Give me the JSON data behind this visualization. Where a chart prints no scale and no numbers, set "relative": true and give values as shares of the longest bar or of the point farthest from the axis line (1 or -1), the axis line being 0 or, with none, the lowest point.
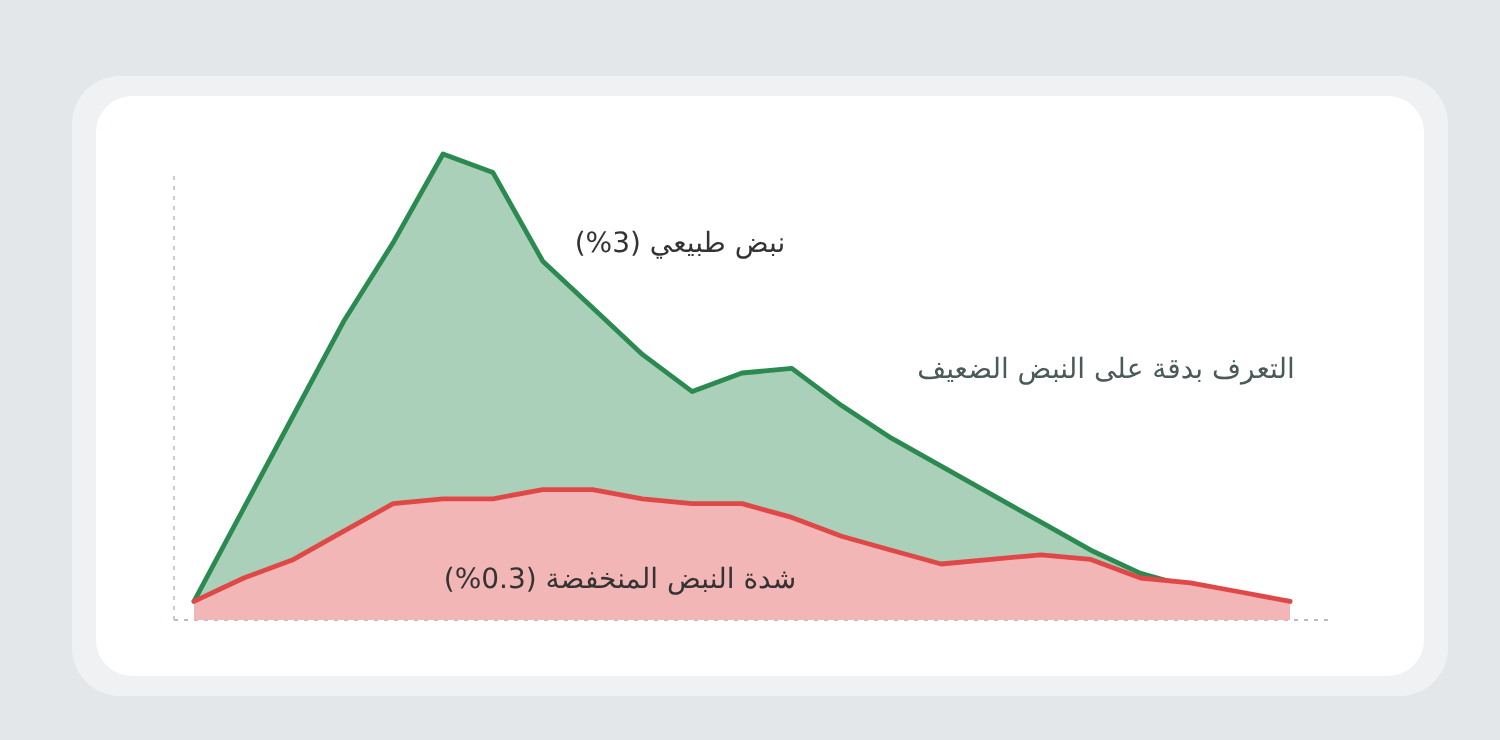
{
  "chart_data": {
    "type": "area",
    "relative": true,
    "categories": [
      null,
      null,
      null,
      null,
      null,
      null,
      null,
      null,
      null,
      null,
      null,
      null,
      null,
      null,
      null,
      null,
      null,
      null,
      null,
      null,
      null,
      null,
      null
    ],
    "series": [
      {
        "name": "نبض طبيعي (3%)",
        "color": "#2b8a50",
        "values": [
          0.04,
          0.24,
          0.44,
          0.64,
          0.81,
          1.0,
          0.96,
          0.77,
          0.67,
          0.57,
          0.49,
          0.53,
          0.54,
          0.46,
          0.39,
          0.33,
          0.27,
          0.21,
          0.15,
          0.1,
          0.07,
          0.05,
          0.04
        ]
      },
      {
        "name": "شدة النبض المنخفضة (0.3%)",
        "color": "#e04848",
        "values": [
          0.04,
          0.09,
          0.13,
          0.19,
          0.25,
          0.26,
          0.26,
          0.28,
          0.28,
          0.26,
          0.25,
          0.25,
          0.22,
          0.18,
          0.15,
          0.12,
          0.13,
          0.14,
          0.13,
          0.09,
          0.08,
          0.06,
          0.04
        ]
      }
    ],
    "annotations": [
      "التعرف بدقة على النبض الضعيف"
    ]
  }
}
